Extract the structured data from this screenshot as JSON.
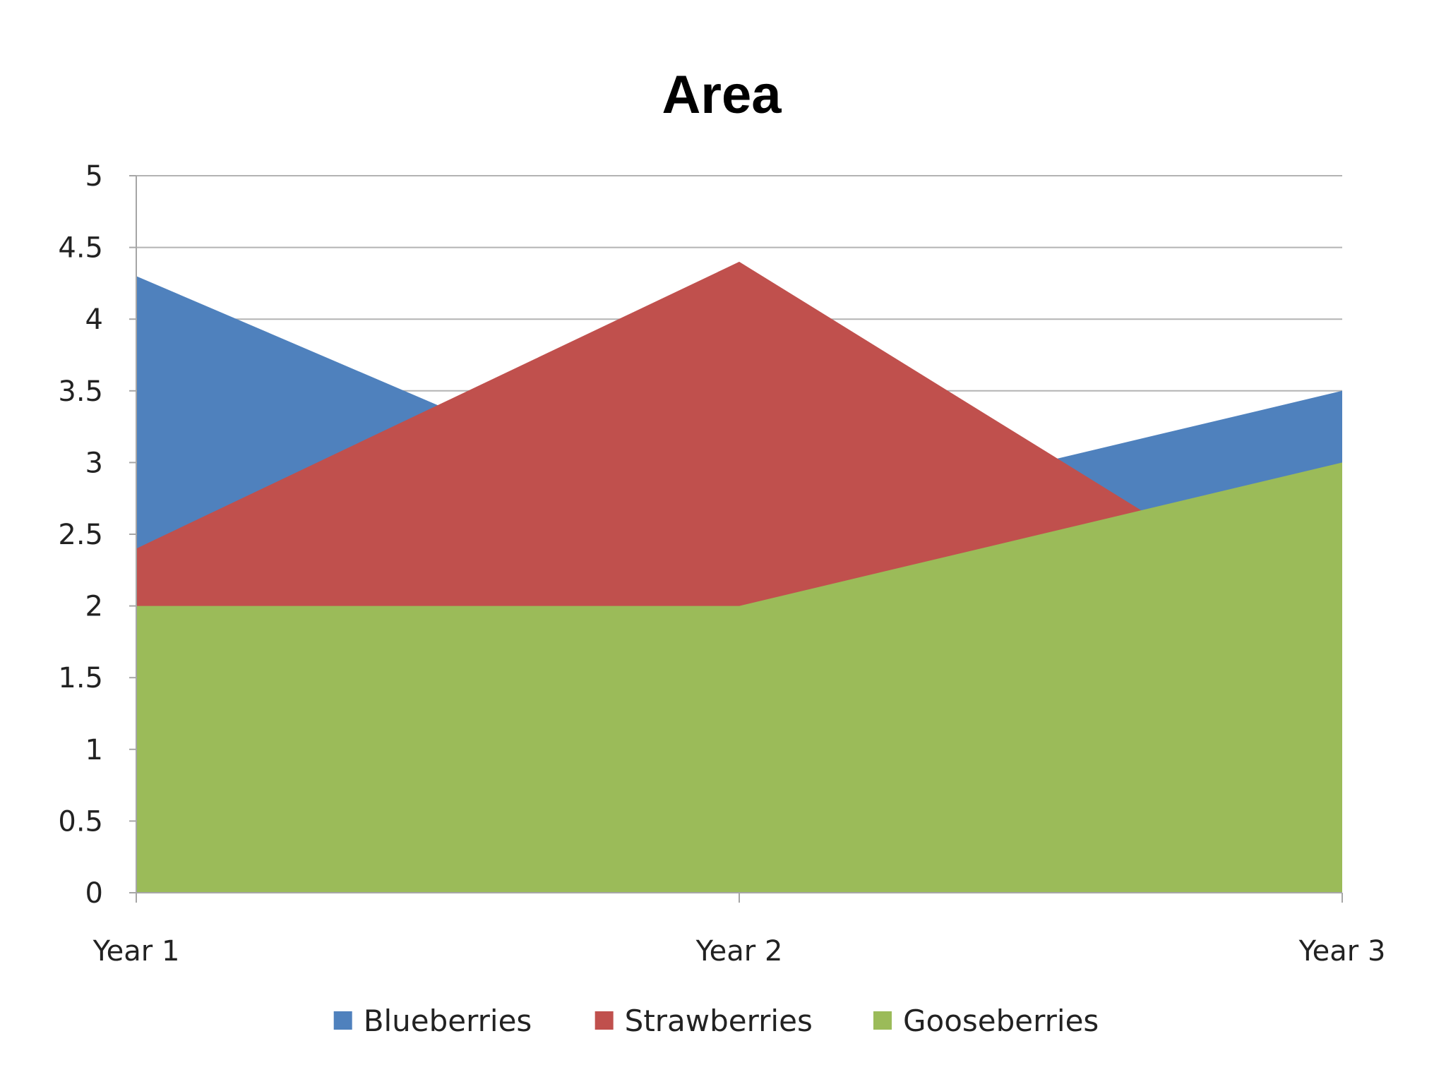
{
  "chart_data": {
    "type": "area",
    "title": "Area",
    "xlabel": "",
    "ylabel": "",
    "categories": [
      "Year 1",
      "Year 2",
      "Year 3"
    ],
    "ylim": [
      0,
      5
    ],
    "yticks": [
      "0",
      "0.5",
      "1",
      "1.5",
      "2",
      "2.5",
      "3",
      "3.5",
      "4",
      "4.5",
      "5"
    ],
    "grid": true,
    "legend_position": "bottom",
    "series": [
      {
        "name": "Blueberries",
        "values": [
          4.3,
          2.5,
          3.5
        ],
        "color": "#4F81BD"
      },
      {
        "name": "Strawberries",
        "values": [
          2.4,
          4.4,
          1.8
        ],
        "color": "#C0504D"
      },
      {
        "name": "Gooseberries",
        "values": [
          2,
          2,
          3
        ],
        "color": "#9BBB59"
      }
    ]
  }
}
